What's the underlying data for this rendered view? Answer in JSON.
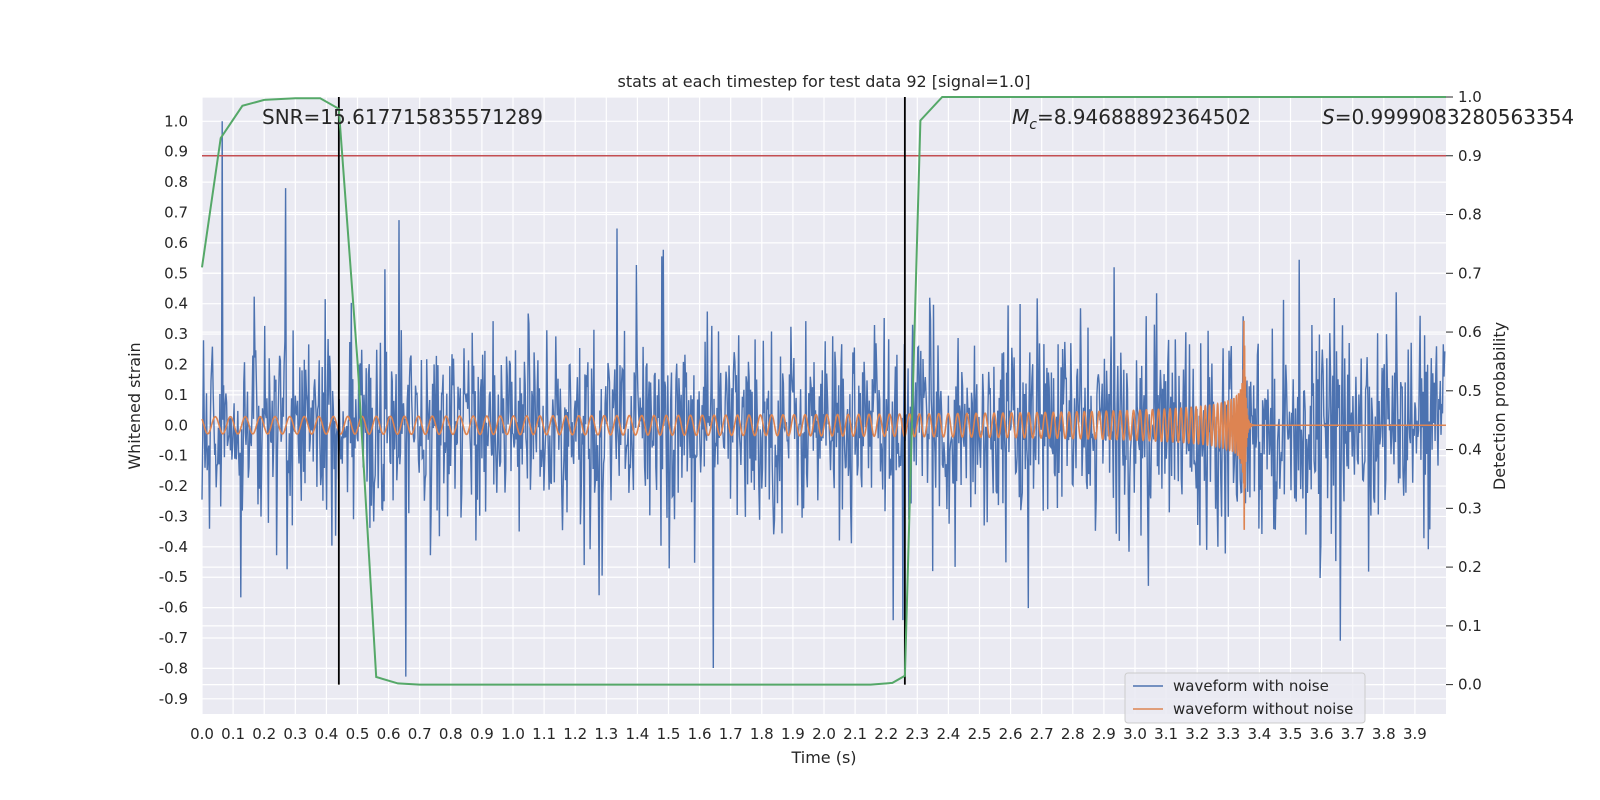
{
  "chart_data": {
    "type": "line",
    "title": "stats at each timestep for test data 92 [signal=1.0]",
    "xlabel": "Time (s)",
    "ylabel": "Whitened strain",
    "y2label": "Detection probability",
    "xlim": [
      0.0,
      4.0
    ],
    "ylim": [
      -0.95,
      1.08
    ],
    "y2lim": [
      -0.05,
      1.0
    ],
    "x_ticks": [
      "0.0",
      "0.1",
      "0.2",
      "0.3",
      "0.4",
      "0.5",
      "0.6",
      "0.7",
      "0.8",
      "0.9",
      "1.0",
      "1.1",
      "1.2",
      "1.3",
      "1.4",
      "1.5",
      "1.6",
      "1.7",
      "1.8",
      "1.9",
      "2.0",
      "2.1",
      "2.2",
      "2.3",
      "2.4",
      "2.5",
      "2.6",
      "2.7",
      "2.8",
      "2.9",
      "3.0",
      "3.1",
      "3.2",
      "3.3",
      "3.4",
      "3.5",
      "3.6",
      "3.7",
      "3.8",
      "3.9"
    ],
    "y_ticks": [
      "1.0",
      "0.9",
      "0.8",
      "0.7",
      "0.6",
      "0.5",
      "0.4",
      "0.3",
      "0.2",
      "0.1",
      "0.0",
      "-0.1",
      "-0.2",
      "-0.3",
      "-0.4",
      "-0.5",
      "-0.6",
      "-0.7",
      "-0.8",
      "-0.9"
    ],
    "y2_ticks": [
      "1.0",
      "0.9",
      "0.8",
      "0.7",
      "0.6",
      "0.5",
      "0.4",
      "0.3",
      "0.2",
      "0.1",
      "0.0"
    ],
    "grid": true,
    "legend_position": "bottom-right",
    "annotations": {
      "snr": "SNR=15.617715835571289",
      "mc_prefix": "M",
      "mc_sub": "c",
      "mc_value": "=8.94688892364502",
      "s_prefix": "S",
      "s_value": "=0.9999083280563354"
    },
    "threshold": 0.9,
    "vertical_lines_x": [
      0.44,
      2.26
    ],
    "series": [
      {
        "name": "waveform with noise",
        "color": "#4c72b0",
        "axis": "left",
        "approx_range": [
          -0.86,
          1.0
        ]
      },
      {
        "name": "waveform without noise",
        "color": "#dd8452",
        "axis": "left",
        "approx_range": [
          -0.48,
          0.46
        ],
        "merger_x": 3.35
      }
    ],
    "detection_probability": {
      "color": "#55a868",
      "x": [
        0.0,
        0.06,
        0.13,
        0.2,
        0.3,
        0.38,
        0.44,
        0.5,
        0.56,
        0.63,
        0.7,
        1.0,
        1.5,
        2.0,
        2.15,
        2.22,
        2.26,
        2.31,
        2.38,
        2.5,
        3.0,
        3.5,
        4.0
      ],
      "values": [
        0.71,
        0.93,
        0.985,
        0.995,
        0.998,
        0.998,
        0.98,
        0.55,
        0.013,
        0.002,
        0.0,
        0.0,
        0.0,
        0.0,
        0.0,
        0.003,
        0.015,
        0.96,
        1.0,
        1.0,
        1.0,
        1.0,
        1.0
      ]
    }
  }
}
